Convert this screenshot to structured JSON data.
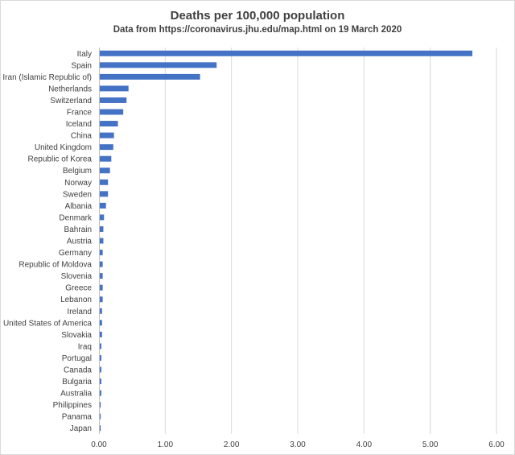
{
  "chart_data": {
    "type": "bar",
    "orientation": "horizontal",
    "title": "Deaths per 100,000  population",
    "subtitle": "Data from https://coronavirus.jhu.edu/map.html  on 19 March 2020",
    "xlabel": "",
    "ylabel": "",
    "xlim": [
      0,
      6
    ],
    "xticks": [
      "0.00",
      "1.00",
      "2.00",
      "3.00",
      "4.00",
      "5.00",
      "6.00"
    ],
    "xtick_values": [
      0,
      1,
      2,
      3,
      4,
      5,
      6
    ],
    "grid": "vertical",
    "legend": "none",
    "bar_color": "#4472c4",
    "categories": [
      "Italy",
      "Spain",
      "Iran (Islamic Republic of)",
      "Netherlands",
      "Switzerland",
      "France",
      "Iceland",
      "China",
      "United Kingdom",
      "Republic of Korea",
      "Belgium",
      "Norway",
      "Sweden",
      "Albania",
      "Denmark",
      "Bahrain",
      "Austria",
      "Germany",
      "Republic of Moldova",
      "Slovenia",
      "Greece",
      "Lebanon",
      "Ireland",
      "United States of America",
      "Slovakia",
      "Iraq",
      "Portugal",
      "Canada",
      "Bulgaria",
      "Australia",
      "Philippines",
      "Panama",
      "Japan"
    ],
    "values": [
      5.63,
      1.77,
      1.52,
      0.44,
      0.41,
      0.36,
      0.28,
      0.22,
      0.21,
      0.18,
      0.16,
      0.13,
      0.13,
      0.1,
      0.07,
      0.06,
      0.06,
      0.05,
      0.05,
      0.05,
      0.05,
      0.05,
      0.04,
      0.04,
      0.04,
      0.03,
      0.03,
      0.03,
      0.03,
      0.03,
      0.02,
      0.02,
      0.02
    ]
  }
}
